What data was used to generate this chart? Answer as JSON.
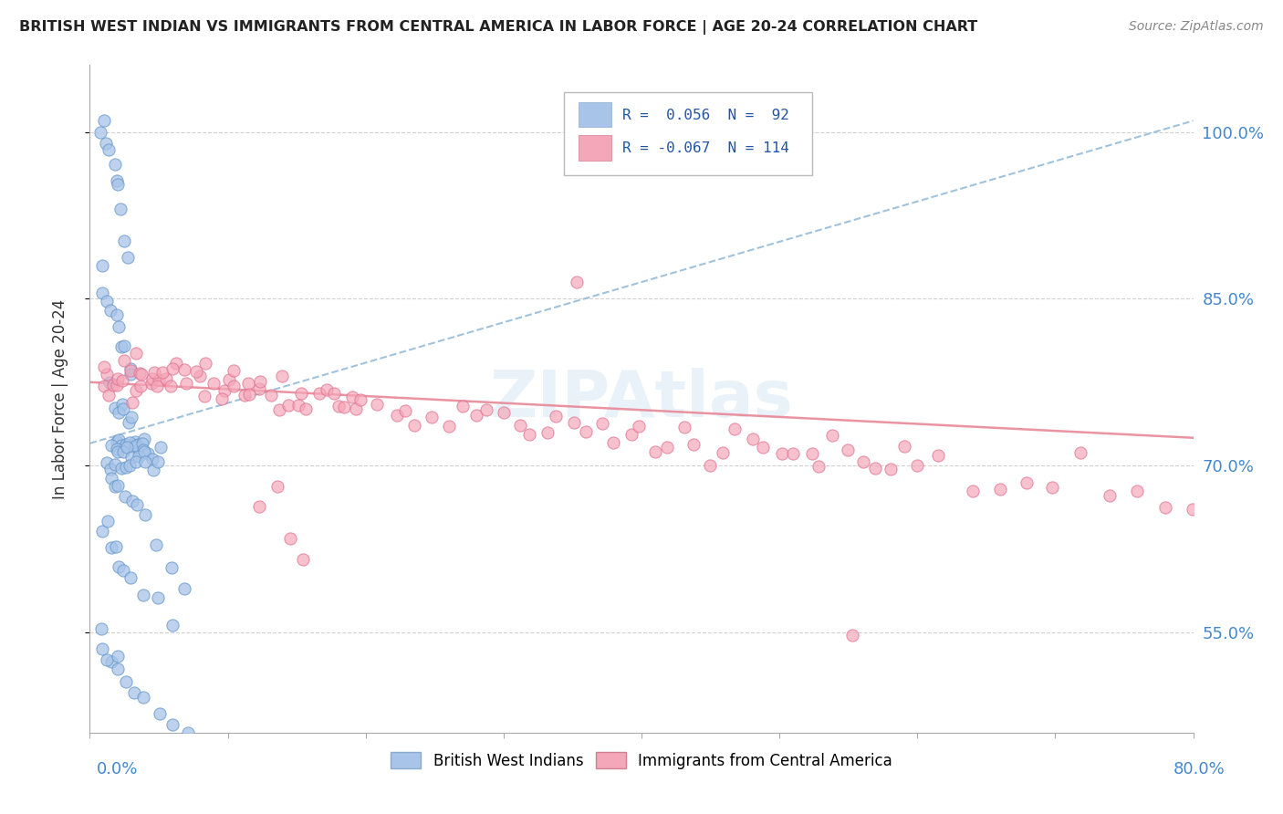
{
  "title": "BRITISH WEST INDIAN VS IMMIGRANTS FROM CENTRAL AMERICA IN LABOR FORCE | AGE 20-24 CORRELATION CHART",
  "source": "Source: ZipAtlas.com",
  "ylabel": "In Labor Force | Age 20-24",
  "series1_label": "British West Indians",
  "series2_label": "Immigrants from Central America",
  "xlim": [
    0.0,
    0.8
  ],
  "ylim": [
    0.46,
    1.06
  ],
  "yticks": [
    0.55,
    0.7,
    0.85,
    1.0
  ],
  "yticklabels": [
    "55.0%",
    "70.0%",
    "85.0%",
    "100.0%"
  ],
  "xtick_left": "0.0%",
  "xtick_right": "80.0%",
  "legend_r1": "R =  0.056  N =  92",
  "legend_r2": "R = -0.067  N = 114",
  "blue_color": "#a8c4e8",
  "pink_color": "#f4a7b9",
  "blue_edge": "#6699cc",
  "pink_edge": "#e07090",
  "blue_trend_color": "#90b8d8",
  "pink_trend_color": "#e88898",
  "watermark": "ZIPAtlas",
  "seed": 12345,
  "blue_x": [
    0.008,
    0.01,
    0.012,
    0.014,
    0.016,
    0.018,
    0.02,
    0.022,
    0.024,
    0.026,
    0.008,
    0.01,
    0.012,
    0.015,
    0.018,
    0.02,
    0.025,
    0.025,
    0.028,
    0.03,
    0.015,
    0.018,
    0.02,
    0.022,
    0.025,
    0.028,
    0.03,
    0.032,
    0.035,
    0.038,
    0.02,
    0.022,
    0.025,
    0.028,
    0.03,
    0.032,
    0.035,
    0.038,
    0.04,
    0.042,
    0.018,
    0.02,
    0.022,
    0.025,
    0.028,
    0.03,
    0.035,
    0.04,
    0.045,
    0.05,
    0.012,
    0.015,
    0.018,
    0.022,
    0.025,
    0.03,
    0.035,
    0.04,
    0.045,
    0.05,
    0.015,
    0.018,
    0.02,
    0.025,
    0.03,
    0.035,
    0.04,
    0.05,
    0.06,
    0.07,
    0.01,
    0.012,
    0.015,
    0.018,
    0.02,
    0.025,
    0.03,
    0.04,
    0.05,
    0.06,
    0.008,
    0.01,
    0.015,
    0.02,
    0.025,
    0.03,
    0.04,
    0.05,
    0.06,
    0.07,
    0.012,
    0.018
  ],
  "blue_y": [
    1.0,
    1.0,
    0.99,
    0.98,
    0.97,
    0.96,
    0.95,
    0.93,
    0.91,
    0.89,
    0.88,
    0.86,
    0.85,
    0.84,
    0.83,
    0.82,
    0.81,
    0.8,
    0.79,
    0.78,
    0.77,
    0.76,
    0.76,
    0.75,
    0.75,
    0.74,
    0.74,
    0.73,
    0.73,
    0.73,
    0.72,
    0.72,
    0.72,
    0.72,
    0.72,
    0.72,
    0.72,
    0.72,
    0.72,
    0.72,
    0.71,
    0.71,
    0.71,
    0.71,
    0.71,
    0.71,
    0.71,
    0.71,
    0.71,
    0.71,
    0.7,
    0.7,
    0.7,
    0.7,
    0.7,
    0.7,
    0.7,
    0.7,
    0.7,
    0.7,
    0.69,
    0.69,
    0.68,
    0.68,
    0.67,
    0.66,
    0.65,
    0.63,
    0.61,
    0.59,
    0.65,
    0.64,
    0.63,
    0.62,
    0.61,
    0.6,
    0.59,
    0.58,
    0.57,
    0.56,
    0.55,
    0.54,
    0.53,
    0.52,
    0.51,
    0.5,
    0.49,
    0.48,
    0.47,
    0.46,
    0.53,
    0.52
  ],
  "pink_x": [
    0.008,
    0.01,
    0.012,
    0.015,
    0.018,
    0.02,
    0.022,
    0.025,
    0.028,
    0.03,
    0.032,
    0.035,
    0.038,
    0.04,
    0.042,
    0.045,
    0.048,
    0.05,
    0.055,
    0.06,
    0.065,
    0.07,
    0.075,
    0.08,
    0.085,
    0.09,
    0.095,
    0.1,
    0.105,
    0.11,
    0.115,
    0.12,
    0.125,
    0.13,
    0.135,
    0.14,
    0.145,
    0.15,
    0.155,
    0.16,
    0.165,
    0.17,
    0.175,
    0.18,
    0.185,
    0.19,
    0.195,
    0.2,
    0.21,
    0.22,
    0.23,
    0.24,
    0.25,
    0.26,
    0.27,
    0.28,
    0.29,
    0.3,
    0.31,
    0.32,
    0.33,
    0.34,
    0.35,
    0.36,
    0.37,
    0.38,
    0.39,
    0.4,
    0.41,
    0.42,
    0.43,
    0.44,
    0.45,
    0.46,
    0.47,
    0.48,
    0.49,
    0.5,
    0.51,
    0.52,
    0.53,
    0.54,
    0.55,
    0.56,
    0.57,
    0.58,
    0.59,
    0.6,
    0.62,
    0.64,
    0.66,
    0.68,
    0.7,
    0.72,
    0.74,
    0.76,
    0.78,
    0.8,
    0.025,
    0.035,
    0.045,
    0.055,
    0.065,
    0.075,
    0.085,
    0.095,
    0.105,
    0.115,
    0.125,
    0.135,
    0.145,
    0.155,
    0.35,
    0.55
  ],
  "pink_y": [
    0.775,
    0.775,
    0.775,
    0.775,
    0.775,
    0.775,
    0.775,
    0.775,
    0.775,
    0.775,
    0.775,
    0.775,
    0.775,
    0.775,
    0.775,
    0.775,
    0.775,
    0.775,
    0.775,
    0.775,
    0.775,
    0.775,
    0.775,
    0.775,
    0.775,
    0.775,
    0.775,
    0.775,
    0.775,
    0.775,
    0.775,
    0.775,
    0.775,
    0.775,
    0.76,
    0.76,
    0.76,
    0.76,
    0.76,
    0.76,
    0.76,
    0.76,
    0.76,
    0.76,
    0.76,
    0.75,
    0.75,
    0.75,
    0.75,
    0.75,
    0.75,
    0.745,
    0.745,
    0.745,
    0.745,
    0.74,
    0.74,
    0.74,
    0.74,
    0.735,
    0.735,
    0.735,
    0.735,
    0.73,
    0.73,
    0.73,
    0.73,
    0.725,
    0.725,
    0.725,
    0.725,
    0.72,
    0.72,
    0.72,
    0.72,
    0.72,
    0.715,
    0.715,
    0.715,
    0.71,
    0.71,
    0.71,
    0.71,
    0.705,
    0.705,
    0.705,
    0.7,
    0.7,
    0.695,
    0.69,
    0.685,
    0.68,
    0.68,
    0.68,
    0.675,
    0.67,
    0.665,
    0.66,
    0.8,
    0.79,
    0.785,
    0.78,
    0.78,
    0.78,
    0.76,
    0.76,
    0.76,
    0.76,
    0.66,
    0.68,
    0.64,
    0.62,
    0.84,
    0.54
  ]
}
